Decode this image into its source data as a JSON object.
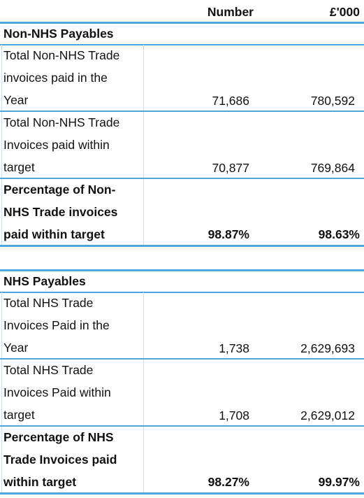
{
  "header": {
    "columns": [
      "Number",
      "£'000"
    ]
  },
  "sections": [
    {
      "title": "Non-NHS Payables",
      "rows": [
        {
          "label_lines": [
            "Total Non-NHS Trade",
            "invoices paid in the",
            "Year"
          ],
          "number": "71,686",
          "amount": "780,592",
          "bold": false
        },
        {
          "label_lines": [
            "Total Non-NHS Trade",
            "Invoices paid within",
            "target"
          ],
          "number": "70,877",
          "amount": "769,864",
          "bold": false
        },
        {
          "label_lines": [
            "Percentage of Non-",
            "NHS Trade invoices",
            "paid within target"
          ],
          "number": "98.87%",
          "amount": "98.63%",
          "bold": true
        }
      ]
    },
    {
      "title": "NHS Payables",
      "rows": [
        {
          "label_lines": [
            "Total NHS Trade",
            "Invoices Paid in the",
            "Year"
          ],
          "number": "1,738",
          "amount": "2,629,693",
          "bold": false
        },
        {
          "label_lines": [
            "Total NHS Trade",
            "Invoices Paid within",
            "target"
          ],
          "number": "1,708",
          "amount": "2,629,012",
          "bold": false
        },
        {
          "label_lines": [
            "Percentage of NHS",
            "Trade Invoices paid",
            "within target"
          ],
          "number": "98.27%",
          "amount": "99.97%",
          "bold": true
        }
      ]
    }
  ]
}
